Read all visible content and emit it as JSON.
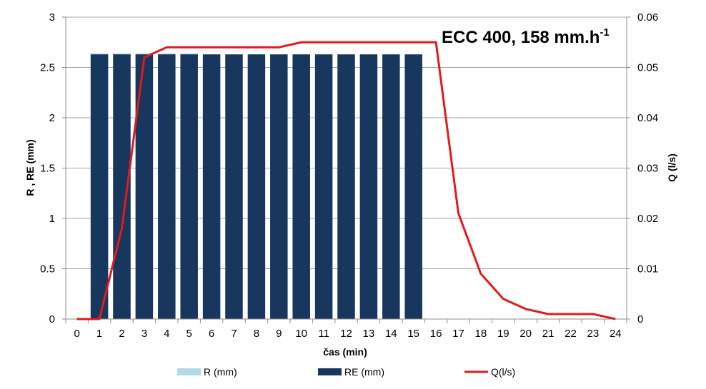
{
  "chart_data": {
    "type": "bar",
    "title": "ECC 400, 158 mm.h",
    "title_superscript": "-1",
    "xlabel": "čas (min)",
    "ylabel": "R , RE (mm)",
    "y2label": "Q (l/s)",
    "categories": [
      "0",
      "1",
      "2",
      "3",
      "4",
      "5",
      "6",
      "7",
      "8",
      "9",
      "10",
      "11",
      "12",
      "13",
      "14",
      "15",
      "16",
      "17",
      "18",
      "19",
      "20",
      "21",
      "22",
      "23",
      "24"
    ],
    "ylim": [
      0,
      3
    ],
    "yticks": [
      "0",
      "0.5",
      "1",
      "1.5",
      "2",
      "2.5",
      "3"
    ],
    "y2lim": [
      0,
      0.06
    ],
    "y2ticks": [
      "0",
      "0.01",
      "0.02",
      "0.03",
      "0.04",
      "0.05",
      "0.06"
    ],
    "grid": true,
    "legend_position": "bottom",
    "series": [
      {
        "name": "R (mm)",
        "kind": "bar",
        "axis": "left",
        "color": "#b4d9e8",
        "values": [
          null,
          2.64,
          2.64,
          2.64,
          2.64,
          2.64,
          null,
          null,
          null,
          null,
          null,
          null,
          null,
          null,
          null,
          null,
          null,
          null,
          null,
          null,
          null,
          null,
          null,
          null,
          null
        ]
      },
      {
        "name": "RE (mm)",
        "kind": "bar",
        "axis": "left",
        "color": "#17375e",
        "values": [
          null,
          2.63,
          2.63,
          2.63,
          2.63,
          2.63,
          2.63,
          2.63,
          2.63,
          2.63,
          2.63,
          2.63,
          2.63,
          2.63,
          2.63,
          2.63,
          null,
          null,
          null,
          null,
          null,
          null,
          null,
          null,
          null
        ]
      },
      {
        "name": "Q(l/s)",
        "kind": "line",
        "axis": "right",
        "color": "#e31a1c",
        "values": [
          0,
          0,
          0.018,
          0.052,
          0.054,
          0.054,
          0.054,
          0.054,
          0.054,
          0.054,
          0.055,
          0.055,
          0.055,
          0.055,
          0.055,
          0.055,
          0.055,
          0.021,
          0.009,
          0.004,
          0.002,
          0.001,
          0.001,
          0.001,
          0
        ]
      }
    ]
  }
}
